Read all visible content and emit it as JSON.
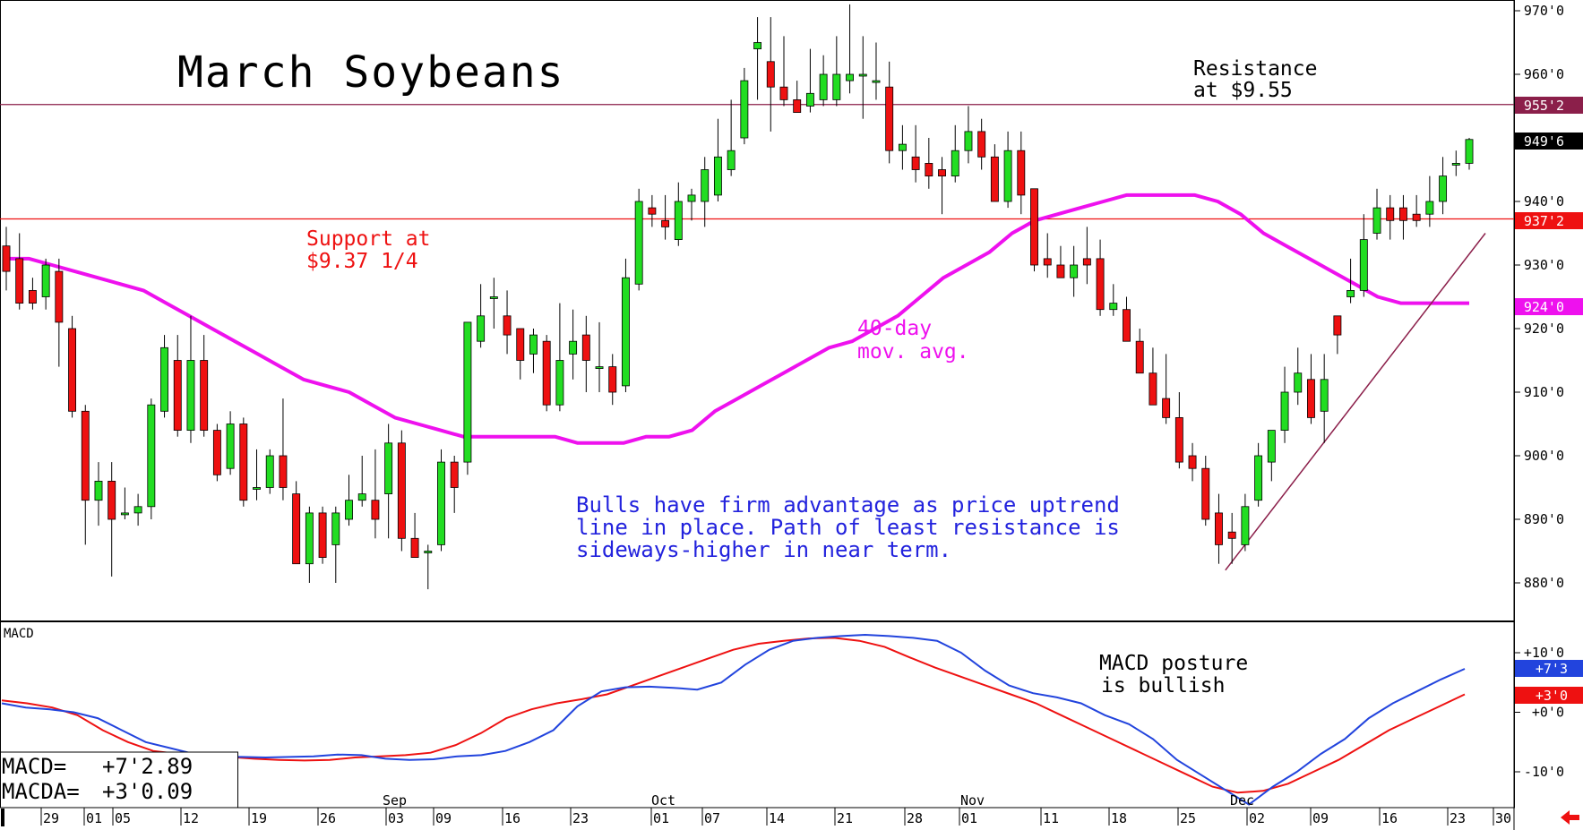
{
  "title": "March Soybeans",
  "price_panel": {
    "y_ticks": [
      "970'0",
      "960'0",
      "950'0",
      "940'0",
      "930'0",
      "920'0",
      "910'0",
      "900'0",
      "890'0",
      "880'0"
    ],
    "resistance": {
      "value": 955.25,
      "label": "955'2",
      "text_line1": "Resistance",
      "text_line2": "at $9.55",
      "color": "#8b1f4a"
    },
    "support": {
      "value": 937.25,
      "label": "937'2",
      "text_line1": "Support at",
      "text_line2": "$9.37 1/4",
      "color": "#ee1111"
    },
    "last_price": {
      "value": 949.75,
      "label": "949'6"
    },
    "ma": {
      "value": 924.0,
      "label": "924'0",
      "text_line1": "40-day",
      "text_line2": "mov. avg.",
      "color": "#ee11ee"
    },
    "commentary": [
      "Bulls have firm advantage as price uptrend",
      "line in place. Path of least resistance is",
      "sideways-higher in near term."
    ],
    "commentary_color": "#2222dd"
  },
  "macd_panel": {
    "label": "MACD",
    "y_ticks": [
      "+10'0",
      "+0'0",
      "-10'0"
    ],
    "macd_badge": "+7'3",
    "signal_badge": "+3'0",
    "posture_line1": "MACD posture",
    "posture_line2": "is bullish",
    "readout_macd_label": "MACD=",
    "readout_macd_value": "+7'2.89",
    "readout_macda_label": "MACDA=",
    "readout_macda_value": "+3'0.09"
  },
  "x_axis": {
    "day_labels": [
      "29",
      "01",
      "05",
      "12",
      "19",
      "26",
      "03",
      "09",
      "16",
      "23",
      "01",
      "07",
      "14",
      "21",
      "28",
      "01",
      "11",
      "18",
      "25",
      "02",
      "09",
      "16",
      "23",
      "30"
    ],
    "month_labels": [
      "Sep",
      "Oct",
      "Nov",
      "Dec"
    ]
  },
  "chart_data": {
    "type": "candlestick",
    "title": "March Soybeans",
    "y_unit": "cents per bushel",
    "ylim": [
      877,
      972
    ],
    "candles": [
      {
        "o": 933,
        "h": 936,
        "l": 926,
        "c": 929
      },
      {
        "o": 931,
        "h": 935,
        "l": 923,
        "c": 924
      },
      {
        "o": 926,
        "h": 928,
        "l": 923,
        "c": 924
      },
      {
        "o": 925,
        "h": 931,
        "l": 923,
        "c": 930
      },
      {
        "o": 929,
        "h": 931,
        "l": 914,
        "c": 921
      },
      {
        "o": 920,
        "h": 922,
        "l": 906,
        "c": 907
      },
      {
        "o": 907,
        "h": 908,
        "l": 886,
        "c": 893
      },
      {
        "o": 893,
        "h": 899,
        "l": 889,
        "c": 896
      },
      {
        "o": 896,
        "h": 899,
        "l": 881,
        "c": 890
      },
      {
        "o": 891,
        "h": 895,
        "l": 890,
        "c": 891
      },
      {
        "o": 891,
        "h": 894,
        "l": 889,
        "c": 892
      },
      {
        "o": 892,
        "h": 909,
        "l": 890,
        "c": 908
      },
      {
        "o": 907,
        "h": 919,
        "l": 906,
        "c": 917
      },
      {
        "o": 915,
        "h": 919,
        "l": 903,
        "c": 904
      },
      {
        "o": 904,
        "h": 922,
        "l": 902,
        "c": 915
      },
      {
        "o": 915,
        "h": 919,
        "l": 903,
        "c": 904
      },
      {
        "o": 904,
        "h": 905,
        "l": 896,
        "c": 897
      },
      {
        "o": 898,
        "h": 907,
        "l": 897,
        "c": 905
      },
      {
        "o": 905,
        "h": 906,
        "l": 892,
        "c": 893
      },
      {
        "o": 895,
        "h": 901,
        "l": 893,
        "c": 895
      },
      {
        "o": 895,
        "h": 901,
        "l": 894,
        "c": 900
      },
      {
        "o": 900,
        "h": 909,
        "l": 893,
        "c": 895
      },
      {
        "o": 894,
        "h": 896,
        "l": 883,
        "c": 883
      },
      {
        "o": 883,
        "h": 892,
        "l": 880,
        "c": 891
      },
      {
        "o": 891,
        "h": 892,
        "l": 883,
        "c": 884
      },
      {
        "o": 886,
        "h": 892,
        "l": 880,
        "c": 891
      },
      {
        "o": 890,
        "h": 897,
        "l": 889,
        "c": 893
      },
      {
        "o": 893,
        "h": 900,
        "l": 892,
        "c": 894
      },
      {
        "o": 893,
        "h": 901,
        "l": 887,
        "c": 890
      },
      {
        "o": 894,
        "h": 905,
        "l": 887,
        "c": 902
      },
      {
        "o": 902,
        "h": 904,
        "l": 885,
        "c": 887
      },
      {
        "o": 887,
        "h": 891,
        "l": 884,
        "c": 884
      },
      {
        "o": 885,
        "h": 886,
        "l": 879,
        "c": 885
      },
      {
        "o": 886,
        "h": 901,
        "l": 885,
        "c": 899
      },
      {
        "o": 899,
        "h": 900,
        "l": 891,
        "c": 895
      },
      {
        "o": 899,
        "h": 921,
        "l": 897,
        "c": 921
      },
      {
        "o": 918,
        "h": 927,
        "l": 917,
        "c": 922
      },
      {
        "o": 925,
        "h": 928,
        "l": 920,
        "c": 925
      },
      {
        "o": 922,
        "h": 926,
        "l": 916,
        "c": 919
      },
      {
        "o": 920,
        "h": 920,
        "l": 912,
        "c": 915
      },
      {
        "o": 916,
        "h": 920,
        "l": 913,
        "c": 919
      },
      {
        "o": 918,
        "h": 919,
        "l": 907,
        "c": 908
      },
      {
        "o": 908,
        "h": 924,
        "l": 907,
        "c": 915
      },
      {
        "o": 916,
        "h": 923,
        "l": 912,
        "c": 918
      },
      {
        "o": 919,
        "h": 922,
        "l": 910,
        "c": 915
      },
      {
        "o": 914,
        "h": 921,
        "l": 910,
        "c": 914
      },
      {
        "o": 914,
        "h": 916,
        "l": 908,
        "c": 910
      },
      {
        "o": 911,
        "h": 931,
        "l": 910,
        "c": 928
      },
      {
        "o": 927,
        "h": 942,
        "l": 926,
        "c": 940
      },
      {
        "o": 939,
        "h": 941,
        "l": 936,
        "c": 938
      },
      {
        "o": 937,
        "h": 941,
        "l": 934,
        "c": 936
      },
      {
        "o": 934,
        "h": 943,
        "l": 933,
        "c": 940
      },
      {
        "o": 940,
        "h": 942,
        "l": 937,
        "c": 941
      },
      {
        "o": 940,
        "h": 947,
        "l": 936,
        "c": 945
      },
      {
        "o": 941,
        "h": 953,
        "l": 940,
        "c": 947
      },
      {
        "o": 945,
        "h": 956,
        "l": 944,
        "c": 948
      },
      {
        "o": 950,
        "h": 961,
        "l": 949,
        "c": 959
      },
      {
        "o": 964,
        "h": 969,
        "l": 956,
        "c": 965
      },
      {
        "o": 962,
        "h": 969,
        "l": 951,
        "c": 958
      },
      {
        "o": 958,
        "h": 966,
        "l": 955,
        "c": 956
      },
      {
        "o": 956,
        "h": 959,
        "l": 954,
        "c": 954
      },
      {
        "o": 955,
        "h": 964,
        "l": 954,
        "c": 957
      },
      {
        "o": 956,
        "h": 963,
        "l": 955,
        "c": 960
      },
      {
        "o": 956,
        "h": 966,
        "l": 955,
        "c": 960
      },
      {
        "o": 959,
        "h": 971,
        "l": 957,
        "c": 960
      },
      {
        "o": 960,
        "h": 966,
        "l": 953,
        "c": 960
      },
      {
        "o": 959,
        "h": 965,
        "l": 956,
        "c": 959
      },
      {
        "o": 958,
        "h": 962,
        "l": 946,
        "c": 948
      },
      {
        "o": 948,
        "h": 952,
        "l": 945,
        "c": 949
      },
      {
        "o": 947,
        "h": 952,
        "l": 943,
        "c": 945
      },
      {
        "o": 946,
        "h": 950,
        "l": 942,
        "c": 944
      },
      {
        "o": 945,
        "h": 947,
        "l": 938,
        "c": 944
      },
      {
        "o": 944,
        "h": 952,
        "l": 943,
        "c": 948
      },
      {
        "o": 948,
        "h": 955,
        "l": 946,
        "c": 951
      },
      {
        "o": 951,
        "h": 953,
        "l": 945,
        "c": 947
      },
      {
        "o": 947,
        "h": 949,
        "l": 940,
        "c": 940
      },
      {
        "o": 940,
        "h": 951,
        "l": 939,
        "c": 948
      },
      {
        "o": 948,
        "h": 951,
        "l": 938,
        "c": 941
      },
      {
        "o": 942,
        "h": 942,
        "l": 929,
        "c": 930
      },
      {
        "o": 931,
        "h": 935,
        "l": 928,
        "c": 930
      },
      {
        "o": 930,
        "h": 933,
        "l": 928,
        "c": 928
      },
      {
        "o": 928,
        "h": 933,
        "l": 925,
        "c": 930
      },
      {
        "o": 931,
        "h": 936,
        "l": 927,
        "c": 930
      },
      {
        "o": 931,
        "h": 934,
        "l": 922,
        "c": 923
      },
      {
        "o": 923,
        "h": 927,
        "l": 922,
        "c": 924
      },
      {
        "o": 923,
        "h": 925,
        "l": 918,
        "c": 918
      },
      {
        "o": 918,
        "h": 920,
        "l": 913,
        "c": 913
      },
      {
        "o": 913,
        "h": 917,
        "l": 908,
        "c": 908
      },
      {
        "o": 909,
        "h": 916,
        "l": 905,
        "c": 906
      },
      {
        "o": 906,
        "h": 910,
        "l": 898,
        "c": 899
      },
      {
        "o": 900,
        "h": 902,
        "l": 896,
        "c": 898
      },
      {
        "o": 898,
        "h": 900,
        "l": 889,
        "c": 890
      },
      {
        "o": 891,
        "h": 894,
        "l": 883,
        "c": 886
      },
      {
        "o": 888,
        "h": 891,
        "l": 883,
        "c": 887
      },
      {
        "o": 886,
        "h": 894,
        "l": 885,
        "c": 892
      },
      {
        "o": 893,
        "h": 902,
        "l": 892,
        "c": 900
      },
      {
        "o": 899,
        "h": 904,
        "l": 896,
        "c": 904
      },
      {
        "o": 904,
        "h": 914,
        "l": 902,
        "c": 910
      },
      {
        "o": 910,
        "h": 917,
        "l": 908,
        "c": 913
      },
      {
        "o": 912,
        "h": 916,
        "l": 905,
        "c": 906
      },
      {
        "o": 907,
        "h": 916,
        "l": 902,
        "c": 912
      },
      {
        "o": 922,
        "h": 922,
        "l": 916,
        "c": 919
      },
      {
        "o": 925,
        "h": 931,
        "l": 924,
        "c": 926
      },
      {
        "o": 926,
        "h": 938,
        "l": 925,
        "c": 934
      },
      {
        "o": 935,
        "h": 942,
        "l": 934,
        "c": 939
      },
      {
        "o": 939,
        "h": 941,
        "l": 934,
        "c": 937
      },
      {
        "o": 939,
        "h": 941,
        "l": 934,
        "c": 937
      },
      {
        "o": 938,
        "h": 941,
        "l": 936,
        "c": 937
      },
      {
        "o": 938,
        "h": 944,
        "l": 936,
        "c": 940
      },
      {
        "o": 940,
        "h": 947,
        "l": 938,
        "c": 944
      },
      {
        "o": 946,
        "h": 948,
        "l": 944,
        "c": 946
      },
      {
        "o": 946,
        "h": 950,
        "l": 945,
        "c": 949.75
      }
    ],
    "ma40": [
      931,
      931,
      930,
      929,
      928,
      927,
      926,
      924,
      922,
      920,
      918,
      916,
      914,
      912,
      911,
      910,
      908,
      906,
      905,
      904,
      903,
      903,
      903,
      903,
      903,
      902,
      902,
      902,
      903,
      903,
      904,
      907,
      909,
      911,
      913,
      915,
      917,
      918,
      920,
      922,
      925,
      928,
      930,
      932,
      935,
      937,
      938,
      939,
      940,
      941,
      941,
      941,
      941,
      940,
      938,
      935,
      933,
      931,
      929,
      927,
      925,
      924,
      924,
      924,
      924
    ],
    "macd": [
      1.5,
      0.8,
      0.5,
      0,
      -1,
      -3,
      -5,
      -6,
      -7,
      -7.5,
      -7.5,
      -7.6,
      -7.5,
      -7.4,
      -7.1,
      -7.2,
      -7.8,
      -8,
      -7.9,
      -7.4,
      -7.2,
      -6.5,
      -5,
      -3,
      1,
      3.5,
      4.2,
      4.3,
      4.1,
      3.8,
      5,
      8,
      10.5,
      12,
      12.5,
      12.8,
      13,
      12.8,
      12.5,
      12,
      10,
      7,
      4.5,
      3.2,
      2.5,
      1.5,
      -0.5,
      -2,
      -4.5,
      -8,
      -10.5,
      -13,
      -15.5,
      -12.5,
      -10,
      -7,
      -4.5,
      -1,
      1.5,
      3.5,
      5.5,
      7.3
    ],
    "macd_signal": [
      2,
      1.5,
      0.8,
      -0.5,
      -3,
      -5,
      -6.5,
      -7,
      -7.2,
      -7.5,
      -7.8,
      -8,
      -8.1,
      -8,
      -7.6,
      -7.4,
      -7.2,
      -6.8,
      -5.5,
      -3.5,
      -1,
      0.5,
      1.5,
      2.2,
      3,
      4.5,
      6,
      7.5,
      9,
      10.5,
      11.5,
      12,
      12.4,
      12.5,
      12,
      11,
      9.2,
      7.5,
      6,
      4.5,
      3,
      1.5,
      -0.5,
      -2.5,
      -4.5,
      -6.5,
      -8.5,
      -10.5,
      -12.5,
      -13.5,
      -13.2,
      -12,
      -10,
      -8,
      -5.5,
      -3,
      -1,
      1,
      3
    ],
    "macd_ylim": [
      -14.5,
      15.5
    ]
  }
}
